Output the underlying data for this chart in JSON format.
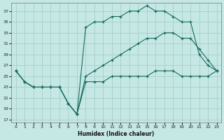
{
  "xlabel": "Humidex (Indice chaleur)",
  "bg_color": "#c5e8e5",
  "grid_color": "#a5cec9",
  "line_color": "#1a6b60",
  "xlim": [
    -0.5,
    23.5
  ],
  "ylim": [
    16.5,
    38.5
  ],
  "yticks": [
    17,
    19,
    21,
    23,
    25,
    27,
    29,
    31,
    33,
    35,
    37
  ],
  "xticks": [
    0,
    1,
    2,
    3,
    4,
    5,
    6,
    7,
    8,
    9,
    10,
    11,
    12,
    13,
    14,
    15,
    16,
    17,
    18,
    19,
    20,
    21,
    22,
    23
  ],
  "line1_x": [
    0,
    1,
    2,
    3,
    4,
    5,
    6,
    7,
    8,
    9,
    10,
    11,
    12,
    13,
    14,
    15,
    16,
    17,
    18,
    19,
    20,
    21,
    22,
    23
  ],
  "line1_y": [
    26,
    24,
    23,
    23,
    23,
    23,
    20,
    18,
    34,
    35,
    35,
    36,
    36,
    37,
    37,
    38,
    37,
    37,
    36,
    35,
    35,
    29,
    27,
    26
  ],
  "line2_x": [
    0,
    1,
    2,
    3,
    4,
    5,
    6,
    7,
    8,
    9,
    10,
    11,
    12,
    13,
    14,
    15,
    16,
    17,
    18,
    19,
    20,
    21,
    22,
    23
  ],
  "line2_y": [
    26,
    24,
    23,
    23,
    23,
    23,
    20,
    18,
    25,
    26,
    27,
    28,
    29,
    30,
    31,
    32,
    32,
    33,
    33,
    32,
    32,
    30,
    28,
    26
  ],
  "line3_x": [
    0,
    1,
    2,
    3,
    4,
    5,
    6,
    7,
    8,
    9,
    10,
    11,
    12,
    13,
    14,
    15,
    16,
    17,
    18,
    19,
    20,
    21,
    22,
    23
  ],
  "line3_y": [
    26,
    24,
    23,
    23,
    23,
    23,
    20,
    18,
    24,
    24,
    24,
    25,
    25,
    25,
    25,
    25,
    26,
    26,
    26,
    25,
    25,
    25,
    25,
    26
  ]
}
